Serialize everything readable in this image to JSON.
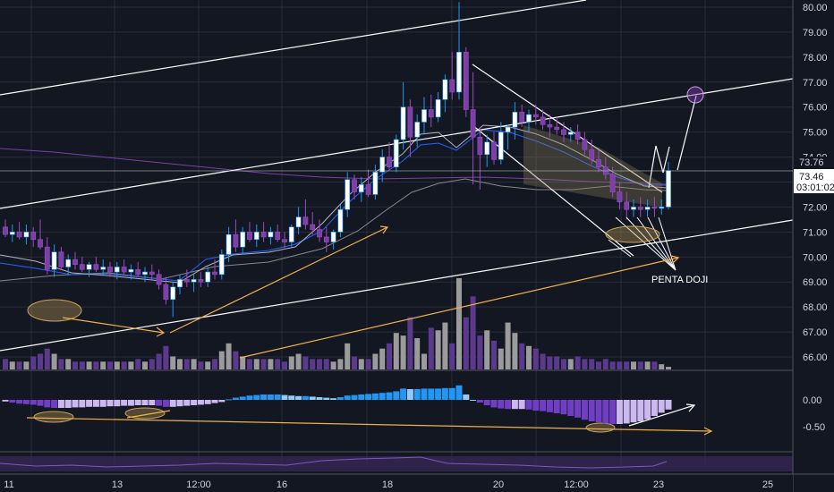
{
  "chart_data": {
    "type": "candlestick",
    "price_axis": {
      "ticks": [
        "80.00",
        "79.00",
        "78.00",
        "77.00",
        "76.00",
        "75.00",
        "74.00",
        "73.00",
        "72.00",
        "71.00",
        "70.00",
        "69.00",
        "68.00",
        "67.00",
        "66.00"
      ],
      "range": [
        65.6,
        80.3
      ]
    },
    "price_labels": {
      "upper": "73.76",
      "current": "73.46",
      "countdown": "03:01:02"
    },
    "time_axis": {
      "labels": [
        "11",
        "13",
        "12:00",
        "16",
        "18",
        "20",
        "12:00",
        "23",
        "25"
      ]
    },
    "macd_axis": {
      "ticks": [
        "0.00",
        "-0.50"
      ],
      "range": [
        -0.72,
        0.3
      ]
    },
    "annotation": "PENTA DOJI",
    "candles": [
      [
        71.2,
        71.5,
        70.8,
        70.9
      ],
      [
        70.9,
        71.3,
        70.6,
        71.0
      ],
      [
        71.0,
        71.4,
        70.7,
        70.8
      ],
      [
        70.8,
        71.3,
        70.5,
        71.0
      ],
      [
        71.0,
        71.2,
        70.4,
        70.7
      ],
      [
        70.7,
        71.5,
        70.3,
        70.4
      ],
      [
        70.4,
        70.8,
        69.3,
        69.5
      ],
      [
        69.5,
        70.5,
        69.2,
        70.2
      ],
      [
        70.2,
        70.4,
        69.5,
        69.6
      ],
      [
        69.6,
        70.1,
        69.3,
        69.9
      ],
      [
        69.9,
        70.2,
        69.5,
        69.7
      ],
      [
        69.7,
        70.0,
        69.4,
        69.5
      ],
      [
        69.5,
        69.8,
        69.2,
        69.7
      ],
      [
        69.7,
        70.0,
        69.4,
        69.5
      ],
      [
        69.5,
        69.9,
        69.3,
        69.6
      ],
      [
        69.6,
        69.8,
        69.2,
        69.4
      ],
      [
        69.4,
        69.8,
        69.1,
        69.6
      ],
      [
        69.6,
        69.9,
        69.3,
        69.4
      ],
      [
        69.4,
        69.7,
        69.1,
        69.5
      ],
      [
        69.5,
        69.8,
        69.2,
        69.3
      ],
      [
        69.3,
        69.6,
        69.0,
        69.4
      ],
      [
        69.4,
        69.7,
        69.1,
        69.3
      ],
      [
        69.3,
        69.5,
        68.7,
        68.9
      ],
      [
        68.9,
        69.2,
        68.1,
        68.3
      ],
      [
        68.3,
        69.0,
        67.6,
        68.8
      ],
      [
        68.8,
        69.3,
        68.5,
        69.1
      ],
      [
        69.1,
        69.5,
        68.8,
        69.0
      ],
      [
        69.0,
        69.3,
        68.6,
        69.1
      ],
      [
        69.1,
        69.4,
        68.8,
        69.0
      ],
      [
        69.0,
        69.6,
        68.8,
        69.4
      ],
      [
        69.4,
        69.9,
        69.1,
        69.3
      ],
      [
        69.3,
        70.3,
        69.1,
        70.1
      ],
      [
        70.1,
        71.2,
        69.8,
        70.9
      ],
      [
        70.9,
        71.5,
        70.2,
        70.4
      ],
      [
        70.4,
        71.2,
        70.1,
        71.0
      ],
      [
        71.0,
        71.4,
        70.6,
        70.7
      ],
      [
        70.7,
        71.3,
        70.4,
        71.0
      ],
      [
        71.0,
        71.4,
        70.6,
        70.8
      ],
      [
        70.8,
        71.2,
        70.5,
        71.0
      ],
      [
        71.0,
        71.3,
        70.6,
        70.7
      ],
      [
        70.7,
        71.0,
        70.3,
        70.6
      ],
      [
        70.6,
        71.3,
        70.4,
        71.2
      ],
      [
        71.2,
        72.0,
        70.9,
        71.6
      ],
      [
        71.6,
        72.3,
        71.1,
        71.3
      ],
      [
        71.3,
        71.8,
        70.9,
        71.1
      ],
      [
        71.1,
        71.5,
        70.6,
        70.8
      ],
      [
        70.8,
        71.2,
        70.2,
        70.6
      ],
      [
        70.6,
        71.1,
        70.3,
        71.0
      ],
      [
        71.0,
        72.1,
        70.8,
        71.9
      ],
      [
        71.9,
        73.4,
        71.6,
        73.1
      ],
      [
        73.1,
        73.3,
        72.3,
        72.6
      ],
      [
        72.6,
        73.2,
        72.2,
        72.9
      ],
      [
        72.9,
        73.5,
        72.4,
        72.5
      ],
      [
        72.5,
        73.7,
        72.3,
        73.4
      ],
      [
        73.4,
        74.3,
        73.0,
        74.0
      ],
      [
        74.0,
        74.6,
        73.5,
        73.6
      ],
      [
        73.6,
        74.9,
        73.4,
        74.7
      ],
      [
        74.7,
        77.0,
        74.3,
        76.0
      ],
      [
        76.0,
        76.3,
        74.0,
        74.8
      ],
      [
        74.8,
        75.7,
        74.4,
        75.4
      ],
      [
        75.4,
        76.4,
        74.9,
        75.9
      ],
      [
        75.9,
        76.5,
        75.2,
        75.6
      ],
      [
        75.6,
        76.6,
        75.4,
        76.3
      ],
      [
        76.3,
        77.3,
        75.8,
        77.1
      ],
      [
        77.1,
        78.2,
        76.3,
        76.6
      ],
      [
        76.6,
        80.2,
        76.3,
        78.2
      ],
      [
        78.2,
        78.4,
        75.6,
        75.9
      ],
      [
        75.9,
        77.4,
        72.9,
        74.8
      ],
      [
        74.8,
        75.2,
        72.7,
        74.1
      ],
      [
        74.1,
        74.9,
        73.6,
        74.6
      ],
      [
        74.6,
        75.0,
        73.7,
        73.9
      ],
      [
        73.9,
        75.4,
        73.7,
        75.0
      ],
      [
        75.0,
        75.3,
        74.3,
        75.2
      ],
      [
        75.2,
        76.2,
        74.7,
        75.8
      ],
      [
        75.8,
        76.1,
        75.2,
        75.4
      ],
      [
        75.4,
        75.9,
        75.0,
        75.7
      ],
      [
        75.7,
        76.1,
        75.3,
        75.6
      ],
      [
        75.6,
        75.9,
        75.1,
        75.3
      ],
      [
        75.3,
        75.7,
        74.8,
        75.2
      ],
      [
        75.2,
        75.6,
        74.9,
        75.1
      ],
      [
        75.1,
        75.4,
        74.6,
        74.9
      ],
      [
        74.9,
        75.2,
        74.6,
        75.0
      ],
      [
        75.0,
        75.3,
        74.5,
        74.7
      ],
      [
        74.7,
        75.0,
        74.1,
        74.3
      ],
      [
        74.3,
        74.7,
        73.7,
        73.9
      ],
      [
        73.9,
        74.3,
        73.4,
        73.6
      ],
      [
        73.6,
        74.0,
        73.1,
        73.3
      ],
      [
        73.3,
        73.6,
        72.4,
        72.6
      ],
      [
        72.6,
        73.0,
        71.9,
        72.2
      ],
      [
        72.2,
        72.6,
        71.5,
        71.9
      ],
      [
        71.9,
        72.3,
        71.6,
        72.0
      ],
      [
        72.0,
        72.4,
        71.6,
        71.9
      ],
      [
        71.9,
        72.3,
        71.6,
        72.0
      ],
      [
        72.0,
        72.4,
        71.6,
        71.95
      ],
      [
        71.95,
        72.3,
        71.7,
        72.0
      ],
      [
        72.0,
        73.8,
        71.9,
        73.46
      ]
    ],
    "volume": [
      4,
      3,
      3,
      3,
      5,
      6,
      8,
      6,
      4,
      4,
      3,
      3,
      3,
      3,
      3,
      3,
      3,
      3,
      3,
      4,
      3,
      4,
      6,
      9,
      5,
      4,
      4,
      4,
      3,
      3,
      4,
      7,
      10,
      7,
      5,
      4,
      4,
      4,
      4,
      4,
      3,
      5,
      6,
      5,
      4,
      4,
      4,
      3,
      4,
      10,
      5,
      4,
      4,
      6,
      8,
      10,
      14,
      13,
      20,
      12,
      6,
      16,
      15,
      18,
      10,
      35,
      20,
      28,
      13,
      15,
      11,
      8,
      18,
      14,
      10,
      9,
      8,
      6,
      5,
      5,
      4,
      4,
      5,
      4,
      4,
      3,
      4,
      3,
      3,
      3,
      3,
      3,
      3,
      3,
      2,
      1
    ],
    "macd": [
      -0.03,
      -0.05,
      -0.07,
      -0.08,
      -0.09,
      -0.11,
      -0.14,
      -0.15,
      -0.15,
      -0.15,
      -0.14,
      -0.14,
      -0.13,
      -0.13,
      -0.13,
      -0.12,
      -0.12,
      -0.11,
      -0.11,
      -0.1,
      -0.1,
      -0.1,
      -0.11,
      -0.13,
      -0.13,
      -0.12,
      -0.11,
      -0.1,
      -0.09,
      -0.08,
      -0.06,
      -0.04,
      0.01,
      0.04,
      0.06,
      0.08,
      0.09,
      0.1,
      0.1,
      0.1,
      0.09,
      0.08,
      0.07,
      0.07,
      0.06,
      0.05,
      0.04,
      0.03,
      0.05,
      0.08,
      0.09,
      0.1,
      0.11,
      0.12,
      0.13,
      0.14,
      0.16,
      0.21,
      0.2,
      0.2,
      0.21,
      0.21,
      0.21,
      0.22,
      0.22,
      0.27,
      0.1,
      0.0,
      -0.05,
      -0.1,
      -0.14,
      -0.16,
      -0.17,
      -0.17,
      -0.17,
      -0.18,
      -0.2,
      -0.21,
      -0.23,
      -0.25,
      -0.27,
      -0.3,
      -0.33,
      -0.37,
      -0.4,
      -0.42,
      -0.44,
      -0.45,
      -0.45,
      -0.44,
      -0.42,
      -0.4,
      -0.36,
      -0.3,
      -0.24,
      -0.18
    ],
    "colors": {
      "up": "#ffffff",
      "down": "#7b3fa8",
      "up_wick": "#2196f3",
      "down_wick": "#9c4bc0",
      "volume_up": "#9b9b9b",
      "volume_down": "#5b3a8e",
      "trendline": "#ffffff",
      "arrow": "#f0b04a",
      "ellipse": "#c9a25a",
      "macd_neg_dark": "#6f3ec2",
      "macd_neg_light": "#cbb8f0",
      "macd_pos_dark": "#2196f3",
      "macd_pos_light": "#90caf9"
    }
  }
}
